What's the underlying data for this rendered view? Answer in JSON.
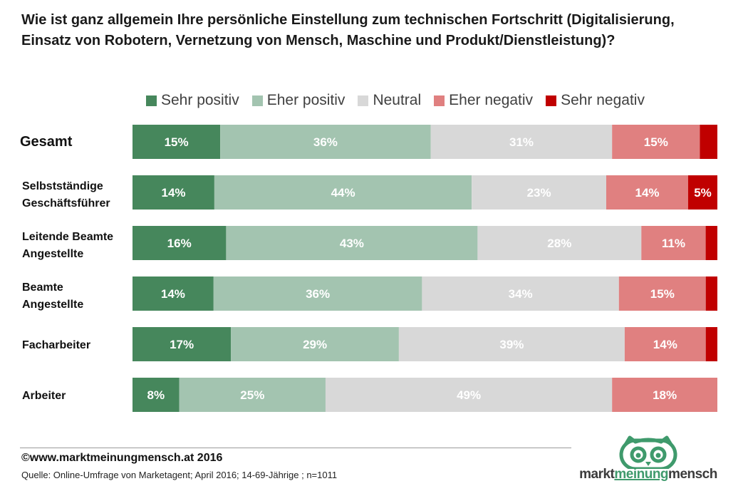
{
  "title_lines": [
    "Wie ist ganz allgemein Ihre persönliche Einstellung zum technischen Fortschritt (Digitalisierung,",
    "Einsatz von Robotern, Vernetzung von Mensch, Maschine und Produkt/Dienstleistung)?"
  ],
  "footer": {
    "copyright": "©www.marktmeinungmensch.at 2016",
    "source": "Quelle: Online-Umfrage von Marketagent; April 2016; 14-69-Jährige ; n=1011"
  },
  "logo": {
    "part1": "markt",
    "part2": "meinung",
    "part3": "mensch",
    "color": "#3f9a6c"
  },
  "chart_data": {
    "type": "bar",
    "orientation": "horizontal",
    "stacked": "100%",
    "categories": [
      [
        "Gesamt"
      ],
      [
        "Selbstständige",
        "Geschäftsführer"
      ],
      [
        "Leitende Beamte",
        "Angestellte"
      ],
      [
        "Beamte",
        "Angestellte"
      ],
      [
        "Facharbeiter"
      ],
      [
        "Arbeiter"
      ]
    ],
    "series": [
      {
        "name": "Sehr positiv",
        "color": "#46875c",
        "label_color": "#ffffff",
        "values": [
          15,
          14,
          16,
          14,
          17,
          8
        ],
        "labels": [
          "15%",
          "14%",
          "16%",
          "14%",
          "17%",
          "8%"
        ]
      },
      {
        "name": "Eher positiv",
        "color": "#a3c4b0",
        "label_color": "#ffffff",
        "values": [
          36,
          44,
          43,
          36,
          29,
          25
        ],
        "labels": [
          "36%",
          "44%",
          "43%",
          "36%",
          "29%",
          "25%"
        ]
      },
      {
        "name": "Neutral",
        "color": "#d8d8d8",
        "label_color": "#ffffff",
        "values": [
          31,
          23,
          28,
          34,
          39,
          49
        ],
        "labels": [
          "31%",
          "23%",
          "28%",
          "34%",
          "39%",
          "49%"
        ]
      },
      {
        "name": "Eher negativ",
        "color": "#e08080",
        "label_color": "#ffffff",
        "values": [
          15,
          14,
          11,
          15,
          14,
          18
        ],
        "labels": [
          "15%",
          "14%",
          "11%",
          "15%",
          "14%",
          "18%"
        ]
      },
      {
        "name": "Sehr negativ",
        "color": "#c00000",
        "label_color": "#ffffff",
        "values": [
          3,
          5,
          2,
          2,
          2,
          0
        ],
        "labels": [
          "",
          "5%",
          "",
          "",
          "",
          ""
        ]
      }
    ],
    "legend_position": "top",
    "xlim": [
      0,
      100
    ],
    "grid": false
  }
}
